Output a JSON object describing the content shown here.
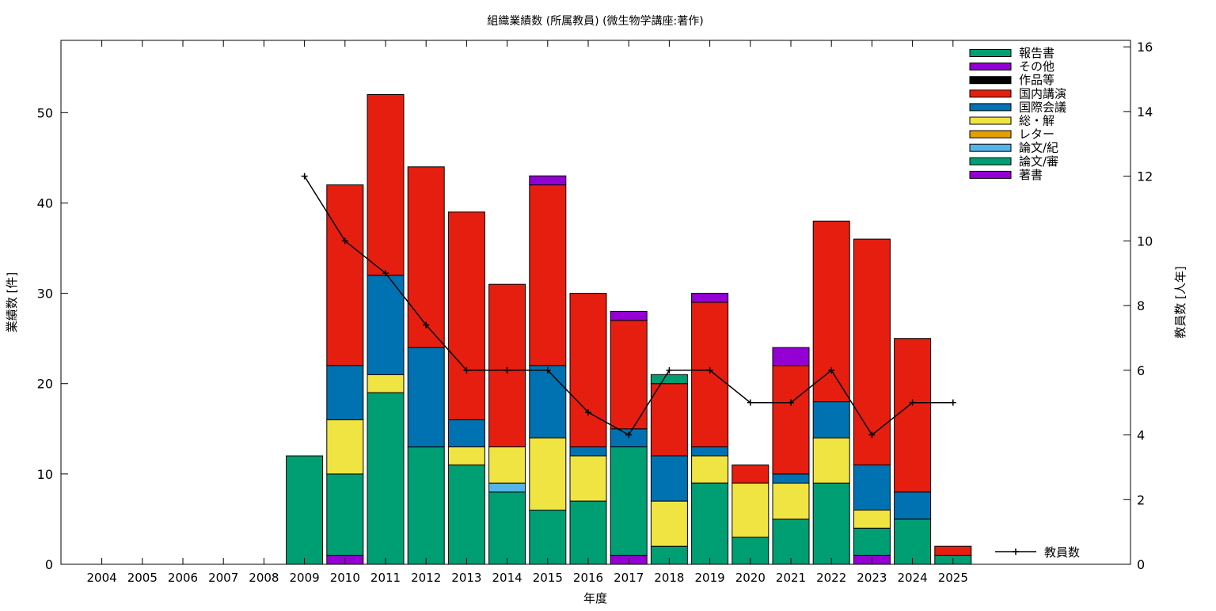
{
  "chart_data": {
    "type": "bar",
    "stacked": true,
    "title": "組織業績数 (所属教員) (微生物学講座:著作)",
    "xlabel": "年度",
    "ylabel": "業績数 [件]",
    "y2label": "教員数 [人年]",
    "ylim": [
      0,
      58
    ],
    "y2lim": [
      0,
      16.2
    ],
    "yticks": [
      "0",
      "10",
      "20",
      "30",
      "40",
      "50"
    ],
    "y2ticks": [
      "0",
      "2",
      "4",
      "6",
      "8",
      "10",
      "12",
      "14",
      "16"
    ],
    "categories": [
      "2004",
      "2005",
      "2006",
      "2007",
      "2008",
      "2009",
      "2010",
      "2011",
      "2012",
      "2013",
      "2014",
      "2015",
      "2016",
      "2017",
      "2018",
      "2019",
      "2020",
      "2021",
      "2022",
      "2023",
      "2024",
      "2025"
    ],
    "legend_position": "top-right",
    "series": [
      {
        "name": "著書",
        "color": "#9400d3",
        "values": [
          0,
          0,
          0,
          0,
          0,
          0,
          1,
          0,
          0,
          0,
          0,
          0,
          0,
          1,
          0,
          0,
          0,
          0,
          0,
          1,
          0,
          0
        ]
      },
      {
        "name": "論文/審",
        "color": "#009e73",
        "values": [
          0,
          0,
          0,
          0,
          0,
          12,
          9,
          19,
          13,
          11,
          8,
          6,
          7,
          12,
          2,
          9,
          3,
          5,
          9,
          3,
          5,
          1
        ]
      },
      {
        "name": "論文/紀",
        "color": "#56b4e9",
        "values": [
          0,
          0,
          0,
          0,
          0,
          0,
          0,
          0,
          0,
          0,
          1,
          0,
          0,
          0,
          0,
          0,
          0,
          0,
          0,
          0,
          0,
          0
        ]
      },
      {
        "name": "レター",
        "color": "#e69f00",
        "values": [
          0,
          0,
          0,
          0,
          0,
          0,
          0,
          0,
          0,
          0,
          0,
          0,
          0,
          0,
          0,
          0,
          0,
          0,
          0,
          0,
          0,
          0
        ]
      },
      {
        "name": "総・解",
        "color": "#f0e442",
        "values": [
          0,
          0,
          0,
          0,
          0,
          0,
          6,
          2,
          0,
          2,
          4,
          8,
          5,
          0,
          5,
          3,
          6,
          4,
          5,
          2,
          0,
          0
        ]
      },
      {
        "name": "国際会議",
        "color": "#0072b2",
        "values": [
          0,
          0,
          0,
          0,
          0,
          0,
          6,
          11,
          11,
          3,
          0,
          8,
          1,
          2,
          5,
          1,
          0,
          1,
          4,
          5,
          3,
          0
        ]
      },
      {
        "name": "国内講演",
        "color": "#e51e10",
        "values": [
          0,
          0,
          0,
          0,
          0,
          0,
          20,
          20,
          20,
          23,
          18,
          20,
          17,
          12,
          8,
          16,
          2,
          12,
          20,
          25,
          17,
          1
        ]
      },
      {
        "name": "作品等",
        "color": "#000000",
        "values": [
          0,
          0,
          0,
          0,
          0,
          0,
          0,
          0,
          0,
          0,
          0,
          0,
          0,
          0,
          0,
          0,
          0,
          0,
          0,
          0,
          0,
          0
        ]
      },
      {
        "name": "その他",
        "color": "#9400d3",
        "values": [
          0,
          0,
          0,
          0,
          0,
          0,
          0,
          0,
          0,
          0,
          0,
          1,
          0,
          1,
          0,
          1,
          0,
          2,
          0,
          0,
          0,
          0
        ]
      },
      {
        "name": "報告書",
        "color": "#009e73",
        "values": [
          0,
          0,
          0,
          0,
          0,
          0,
          0,
          0,
          0,
          0,
          0,
          0,
          0,
          0,
          1,
          0,
          0,
          0,
          0,
          0,
          0,
          0
        ]
      }
    ],
    "line_series": {
      "name": "教員数",
      "color": "#000000",
      "x": [
        "2009",
        "2010",
        "2011",
        "2012",
        "2013",
        "2014",
        "2015",
        "2016",
        "2017",
        "2018",
        "2019",
        "2020",
        "2021",
        "2022",
        "2023",
        "2024",
        "2025"
      ],
      "values": [
        12,
        10,
        9,
        7.4,
        6,
        6,
        6,
        4.7,
        4,
        6,
        6,
        5,
        5,
        6,
        4,
        5,
        5
      ]
    }
  }
}
